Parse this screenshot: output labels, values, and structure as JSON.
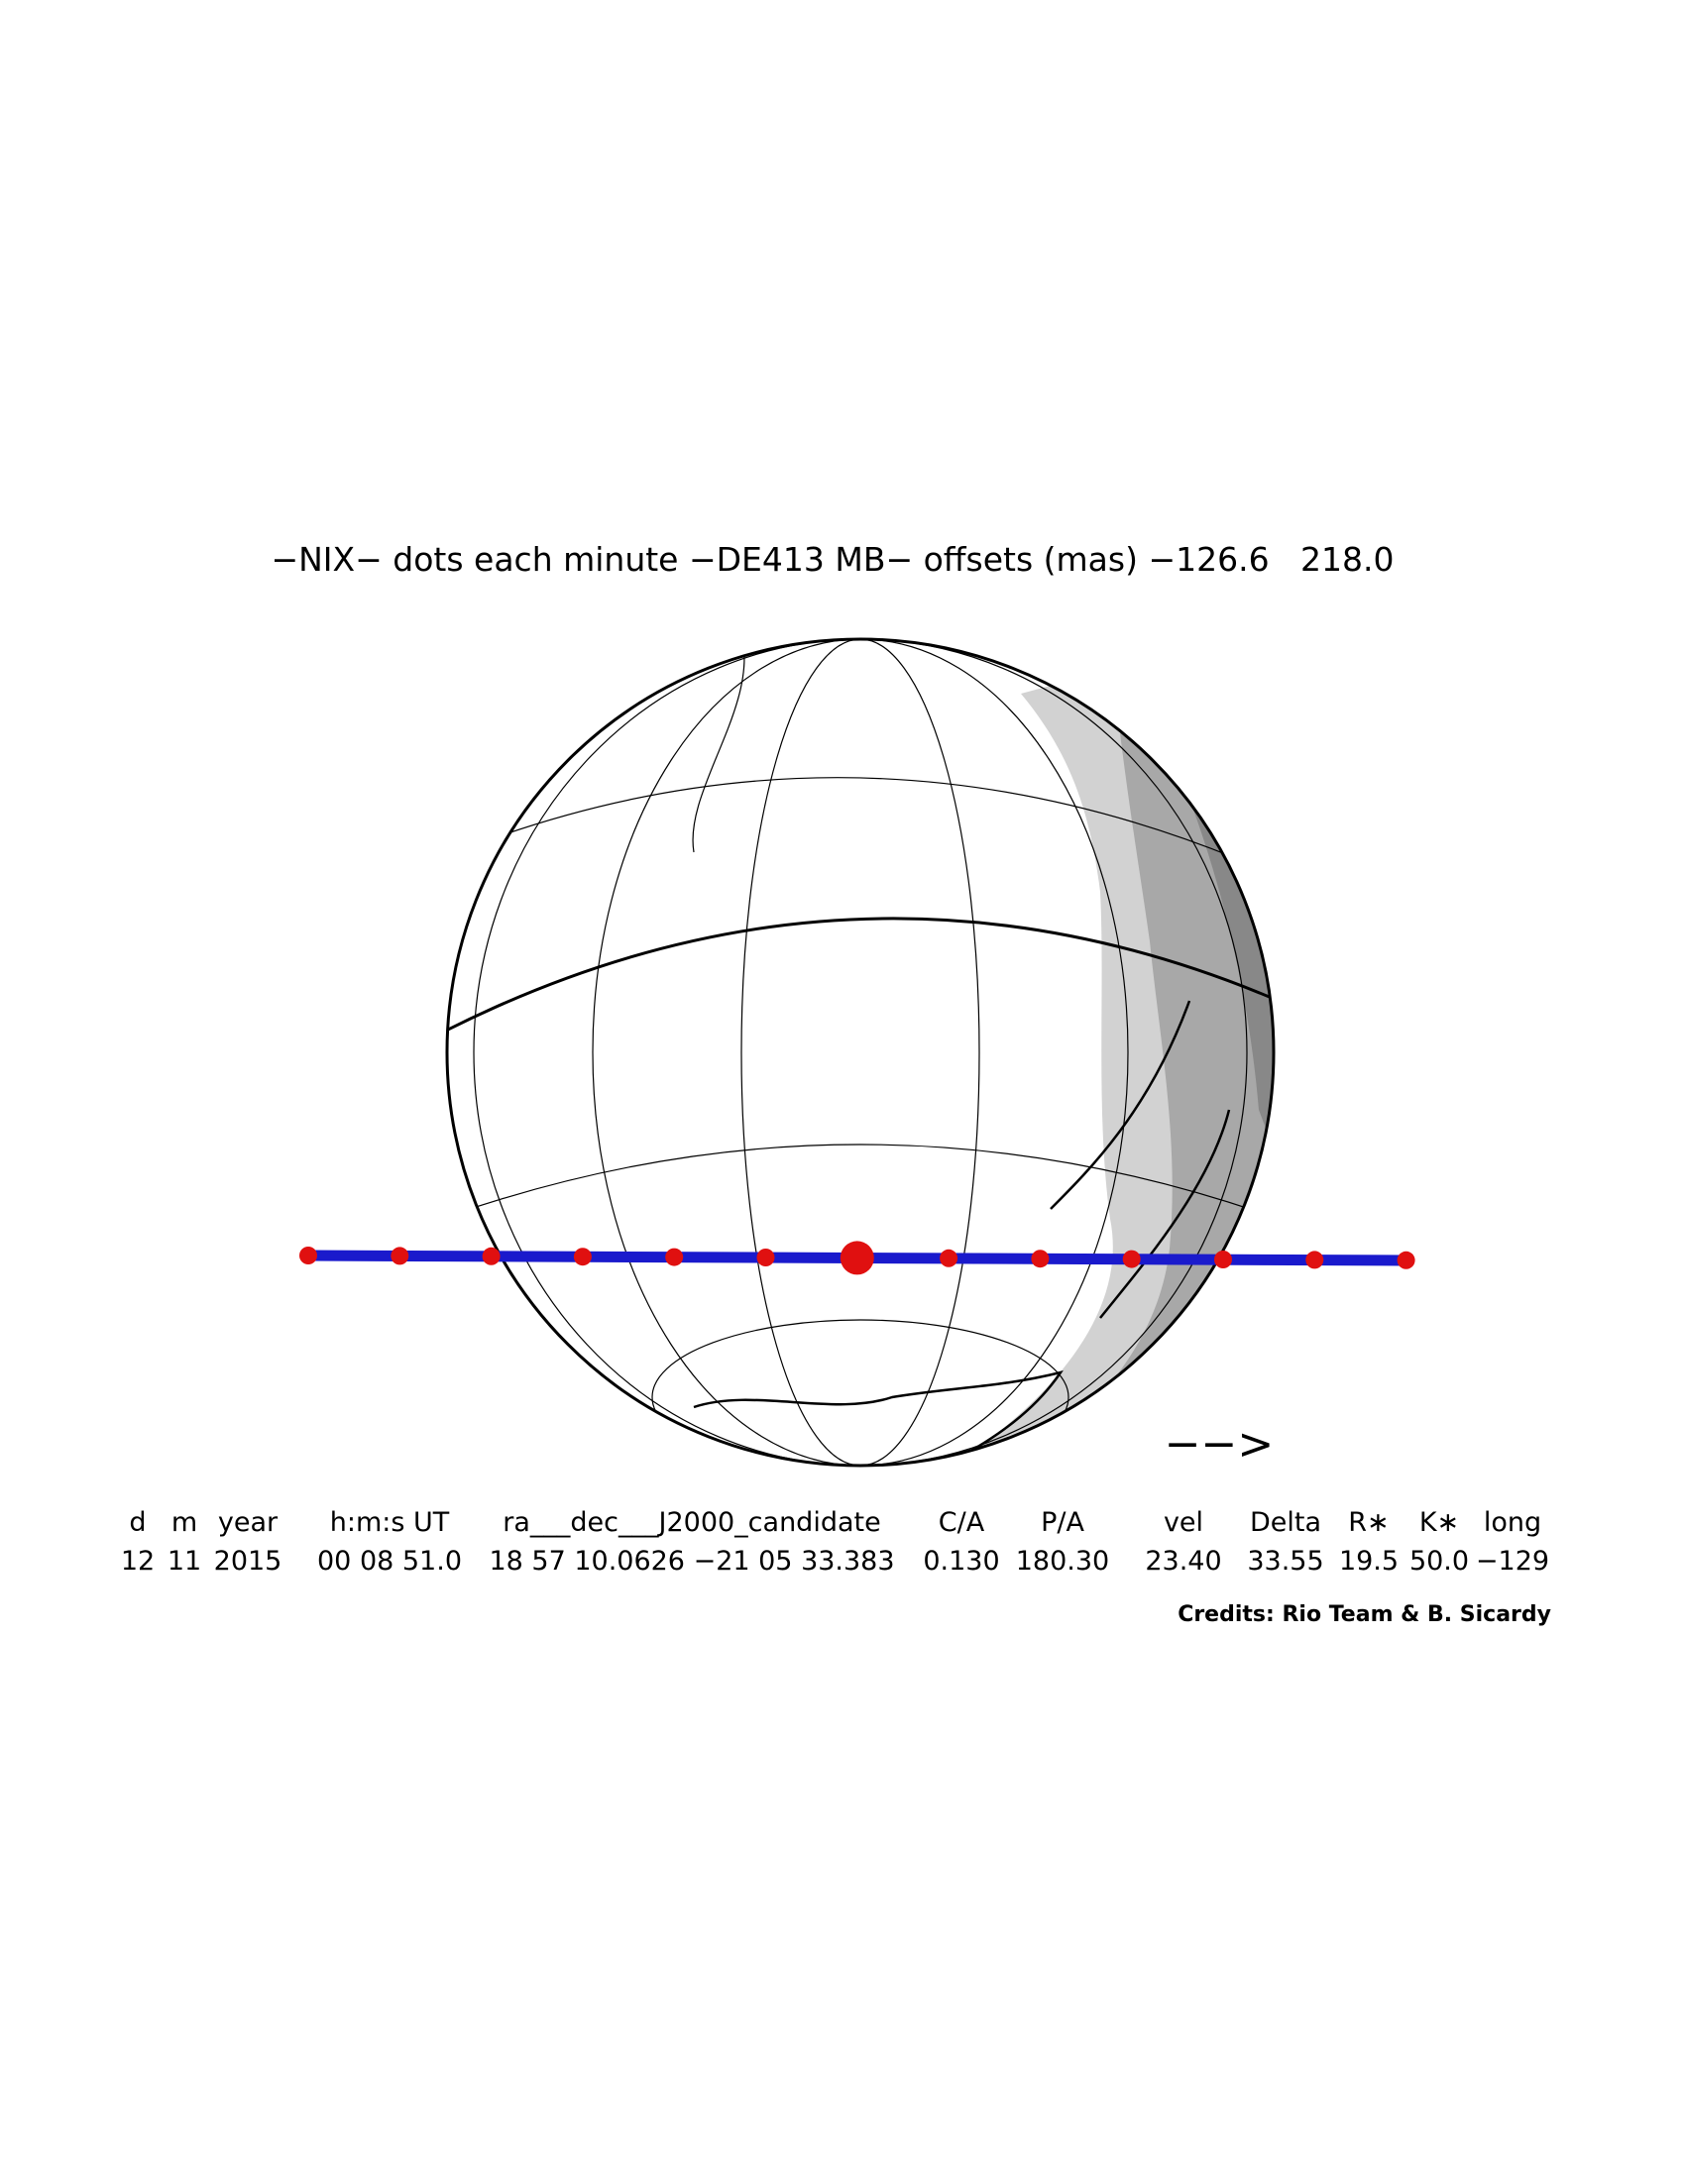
{
  "title": "−NIX− dots each minute −DE413 MB− offsets (mas) −126.6   218.0",
  "direction_arrow": "−−>",
  "table": {
    "columns": [
      "d",
      "m",
      "year",
      "h:m:s UT",
      "ra___dec___J2000_candidate",
      "C/A",
      "P/A",
      "vel",
      "Delta",
      "R∗",
      "K∗",
      "long"
    ],
    "rows": [
      [
        "12",
        "11",
        "2015",
        "00 08 51.0",
        "18 57 10.0626 −21 05 33.383",
        "0.130",
        "180.30",
        "23.40",
        "33.55",
        "19.5",
        "50.0",
        "−129"
      ]
    ]
  },
  "credits": "Credits: Rio Team & B. Sicardy"
}
